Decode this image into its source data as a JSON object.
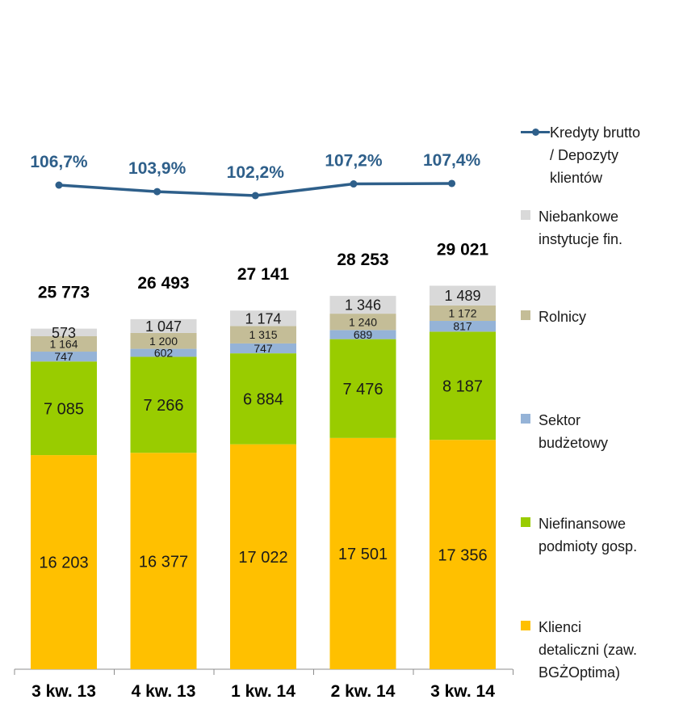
{
  "chart_data": {
    "type": "bar",
    "stacked": true,
    "categories": [
      "3 kw. 13",
      "4 kw. 13",
      "1 kw. 14",
      "2 kw. 14",
      "3 kw. 14"
    ],
    "totals": [
      "25 773",
      "26 493",
      "27 141",
      "28 253",
      "29 021"
    ],
    "series": [
      {
        "name": "Klienci detaliczni (zaw. BGŻOptima)",
        "color": "#FFC000",
        "values": [
          16203,
          16377,
          17022,
          17501,
          17356
        ],
        "labels": [
          "16 203",
          "16 377",
          "17 022",
          "17 501",
          "17 356"
        ]
      },
      {
        "name": "Niefinansowe podmioty gosp.",
        "color": "#99CC00",
        "values": [
          7085,
          7266,
          6884,
          7476,
          8187
        ],
        "labels": [
          "7 085",
          "7 266",
          "6 884",
          "7 476",
          "8 187"
        ]
      },
      {
        "name": "Sektor budżetowy",
        "color": "#95B3D7",
        "values": [
          747,
          602,
          747,
          689,
          817
        ],
        "labels": [
          "747",
          "602",
          "747",
          "689",
          "817"
        ]
      },
      {
        "name": "Rolnicy",
        "color": "#C4BD97",
        "values": [
          1164,
          1200,
          1315,
          1240,
          1172
        ],
        "labels": [
          "1 164",
          "1 200",
          "1 315",
          "1 240",
          "1 172"
        ]
      },
      {
        "name": "Niebankowe instytucje fin.",
        "color": "#D9D9D9",
        "values": [
          573,
          1047,
          1174,
          1346,
          1489
        ],
        "labels": [
          "573",
          "1 047",
          "1 174",
          "1 346",
          "1 489"
        ]
      }
    ],
    "line_series": {
      "name": "Kredyty brutto / Depozyty klientów",
      "color": "#2E5F8A",
      "values": [
        106.7,
        103.9,
        102.2,
        107.2,
        107.4
      ],
      "labels": [
        "106,7%",
        "103,9%",
        "102,2%",
        "107,2%",
        "107,4%"
      ]
    },
    "legend_position": "right",
    "grid": false
  },
  "legend": {
    "items": [
      {
        "key": "line",
        "label": "Kredyty brutto\n/ Depozyty\nklientów",
        "color": "#2E5F8A"
      },
      {
        "key": "box",
        "label": "Niebankowe\ninstytucje fin.",
        "color": "#D9D9D9"
      },
      {
        "key": "box",
        "label": "Rolnicy",
        "color": "#C4BD97"
      },
      {
        "key": "box",
        "label": "Sektor\nbudżetowy",
        "color": "#95B3D7"
      },
      {
        "key": "box",
        "label": "Niefinansowe\npodmioty gosp.",
        "color": "#99CC00"
      },
      {
        "key": "box",
        "label": "Klienci\ndetaliczni (zaw.\nBGŻOptima)",
        "color": "#FFC000"
      }
    ]
  }
}
